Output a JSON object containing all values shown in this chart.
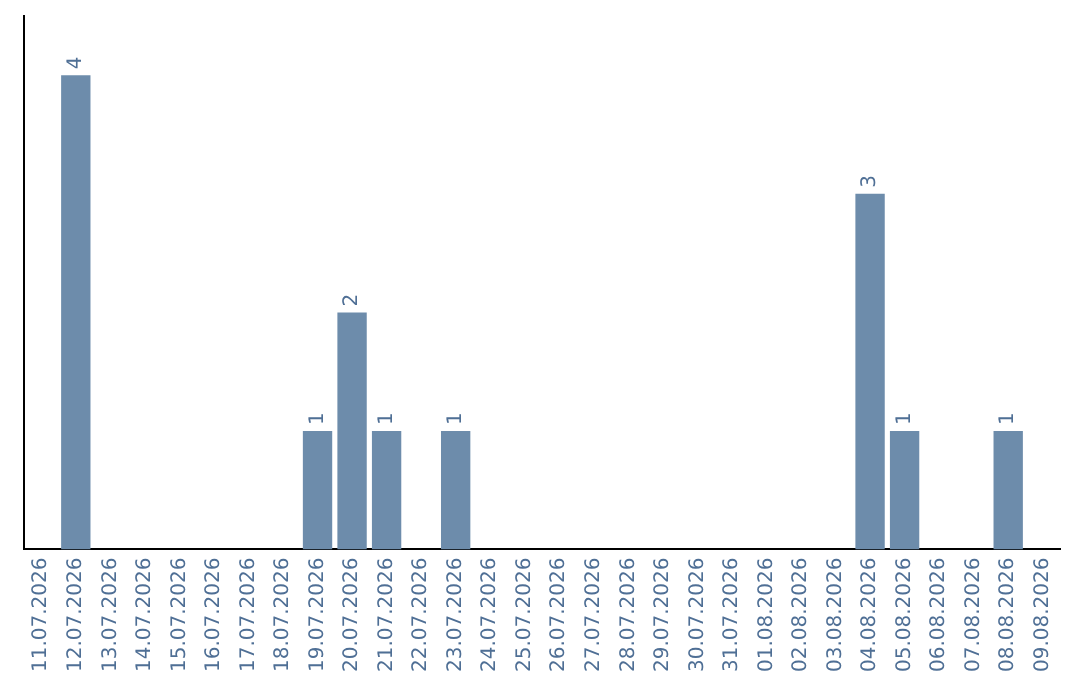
{
  "chart_data": {
    "type": "bar",
    "categories": [
      "11.07.2026",
      "12.07.2026",
      "13.07.2026",
      "14.07.2026",
      "15.07.2026",
      "16.07.2026",
      "17.07.2026",
      "18.07.2026",
      "19.07.2026",
      "20.07.2026",
      "21.07.2026",
      "22.07.2026",
      "23.07.2026",
      "24.07.2026",
      "25.07.2026",
      "26.07.2026",
      "27.07.2026",
      "28.07.2026",
      "29.07.2026",
      "30.07.2026",
      "31.07.2026",
      "01.08.2026",
      "02.08.2026",
      "03.08.2026",
      "04.08.2026",
      "05.08.2026",
      "06.08.2026",
      "07.08.2026",
      "08.08.2026",
      "09.08.2026"
    ],
    "values": [
      0,
      4,
      0,
      0,
      0,
      0,
      0,
      0,
      1,
      2,
      1,
      0,
      1,
      0,
      0,
      0,
      0,
      0,
      0,
      0,
      0,
      0,
      0,
      0,
      3,
      1,
      0,
      0,
      1,
      0
    ],
    "value_labels": [
      null,
      "4",
      null,
      null,
      null,
      null,
      null,
      null,
      "1",
      "2",
      "1",
      null,
      "1",
      null,
      null,
      null,
      null,
      null,
      null,
      null,
      null,
      null,
      null,
      null,
      "3",
      "1",
      null,
      null,
      "1",
      null
    ],
    "color": "#6d8cab",
    "grid": false,
    "legend": false,
    "tick_labels": "x"
  }
}
